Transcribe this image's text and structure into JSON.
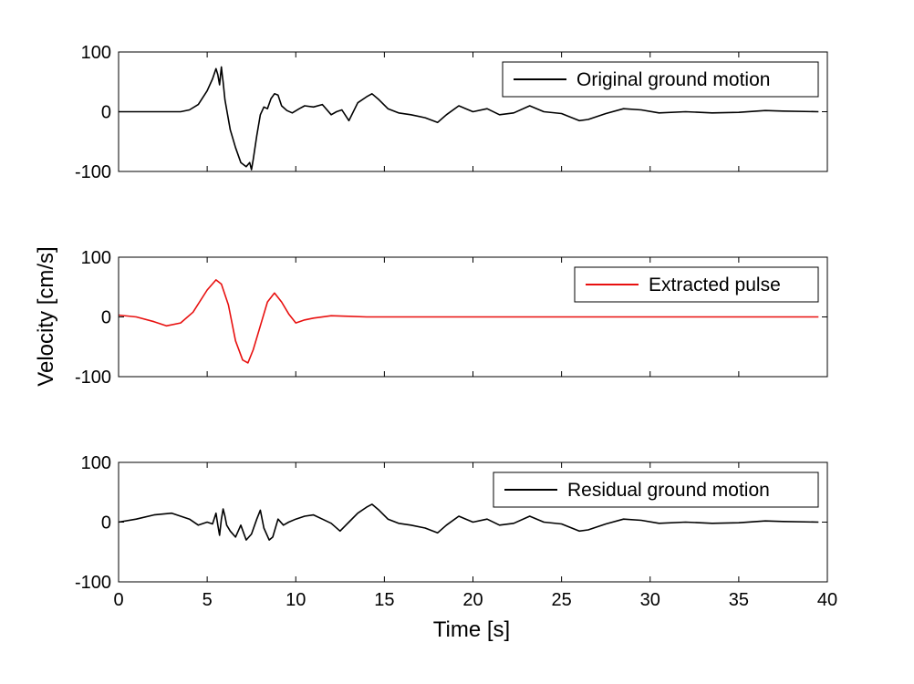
{
  "chart_data": {
    "type": "line",
    "ylabel": "Velocity [cm/s]",
    "xlabel": "Time [s]",
    "xlim": [
      0,
      40
    ],
    "x_ticks": [
      "0",
      "5",
      "10",
      "15",
      "20",
      "25",
      "30",
      "35",
      "40"
    ],
    "y_ticks": [
      "100",
      "0",
      "-100"
    ],
    "panels": [
      {
        "legend": "Original ground motion",
        "legend_position": "top-right",
        "color": "#000000",
        "ylim": [
          -100,
          100
        ],
        "x": [
          0,
          2,
          3.5,
          4,
          4.5,
          5,
          5.3,
          5.5,
          5.6,
          5.7,
          5.75,
          5.8,
          5.85,
          5.9,
          6.0,
          6.3,
          6.6,
          6.9,
          7.2,
          7.4,
          7.5,
          7.6,
          7.8,
          8.0,
          8.2,
          8.4,
          8.6,
          8.8,
          9.0,
          9.2,
          9.5,
          9.8,
          10.2,
          10.5,
          11.0,
          11.5,
          12.0,
          12.3,
          12.6,
          13.0,
          13.5,
          14.0,
          14.3,
          14.7,
          15.2,
          15.8,
          16.5,
          17.3,
          18.0,
          18.5,
          19.2,
          20.0,
          20.8,
          21.5,
          22.3,
          23.2,
          24.0,
          25.0,
          26.0,
          26.5,
          27.5,
          28.5,
          29.5,
          30.5,
          32.0,
          33.5,
          35.0,
          36.5,
          37.5,
          39.5
        ],
        "values": [
          0,
          0,
          0,
          3,
          12,
          35,
          55,
          72,
          62,
          45,
          60,
          75,
          62,
          50,
          20,
          -30,
          -60,
          -85,
          -92,
          -85,
          -97,
          -80,
          -40,
          -5,
          8,
          5,
          22,
          30,
          28,
          10,
          2,
          -2,
          5,
          10,
          8,
          12,
          -5,
          0,
          3,
          -15,
          15,
          25,
          30,
          20,
          5,
          -2,
          -5,
          -10,
          -18,
          -5,
          10,
          0,
          5,
          -5,
          -2,
          10,
          0,
          -3,
          -15,
          -13,
          -3,
          5,
          3,
          -2,
          0,
          -2,
          -1,
          2,
          1,
          0
        ]
      },
      {
        "legend": "Extracted pulse",
        "legend_position": "top-right",
        "color": "#e8100f",
        "ylim": [
          -100,
          100
        ],
        "x": [
          0,
          1,
          2,
          2.7,
          3.5,
          4.2,
          5.0,
          5.5,
          5.8,
          6.2,
          6.6,
          7.0,
          7.3,
          7.6,
          8.0,
          8.4,
          8.8,
          9.2,
          9.6,
          10.0,
          10.5,
          11.0,
          12.0,
          13.0,
          14.0,
          17.0,
          20.0,
          25.0,
          30.0,
          35.0,
          39.5
        ],
        "values": [
          3,
          0,
          -8,
          -15,
          -10,
          8,
          45,
          62,
          55,
          20,
          -40,
          -72,
          -77,
          -55,
          -15,
          25,
          40,
          25,
          5,
          -10,
          -5,
          -2,
          2,
          1,
          0,
          0,
          0,
          0,
          0,
          0,
          0
        ]
      },
      {
        "legend": "Residual ground motion",
        "legend_position": "top-right",
        "color": "#000000",
        "ylim": [
          -100,
          100
        ],
        "x": [
          0,
          1.0,
          2.0,
          3.0,
          4.0,
          4.5,
          5.0,
          5.3,
          5.5,
          5.6,
          5.7,
          5.8,
          5.9,
          6.0,
          6.1,
          6.3,
          6.6,
          6.9,
          7.2,
          7.5,
          7.8,
          8.0,
          8.2,
          8.5,
          8.7,
          9.0,
          9.3,
          9.6,
          10.0,
          10.5,
          11.0,
          11.5,
          12.0,
          12.5,
          13.0,
          13.5,
          14.0,
          14.3,
          14.7,
          15.2,
          15.8,
          16.5,
          17.3,
          18.0,
          18.5,
          19.2,
          20.0,
          20.8,
          21.5,
          22.3,
          23.2,
          24.0,
          25.0,
          26.0,
          26.5,
          27.5,
          28.5,
          29.5,
          30.5,
          32.0,
          33.5,
          35.0,
          36.5,
          37.5,
          39.5
        ],
        "values": [
          0,
          5,
          12,
          15,
          5,
          -5,
          0,
          -3,
          15,
          -5,
          -22,
          5,
          22,
          10,
          -5,
          -15,
          -25,
          -5,
          -30,
          -20,
          5,
          20,
          -10,
          -30,
          -25,
          5,
          -5,
          0,
          5,
          10,
          12,
          5,
          -2,
          -15,
          0,
          15,
          25,
          30,
          20,
          5,
          -2,
          -5,
          -10,
          -18,
          -5,
          10,
          0,
          5,
          -5,
          -2,
          10,
          0,
          -3,
          -15,
          -13,
          -3,
          5,
          3,
          -2,
          0,
          -2,
          -1,
          2,
          1,
          0
        ]
      }
    ]
  }
}
